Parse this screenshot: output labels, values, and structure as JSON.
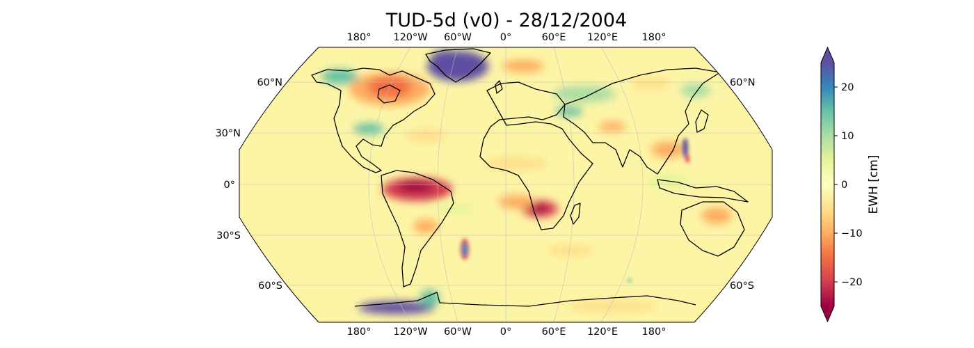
{
  "title": "TUD-5d (v0) - 28/12/2004",
  "lon_labels": [
    "180°",
    "120°W",
    "60°W",
    "0°",
    "60°E",
    "120°E",
    "180°"
  ],
  "lat_labels_left": [
    "60°N",
    "30°N",
    "0°",
    "30°S",
    "60°S"
  ],
  "lat_labels_right": [
    "60°N",
    "60°S"
  ],
  "colorbar": {
    "label": "EWH [cm]",
    "min": -25,
    "max": 25,
    "ticks": [
      {
        "value": 20,
        "label": "20"
      },
      {
        "value": 10,
        "label": "10"
      },
      {
        "value": 0,
        "label": "0"
      },
      {
        "value": -10,
        "label": "−10"
      },
      {
        "value": -20,
        "label": "−20"
      }
    ],
    "colormap": "Spectral",
    "colors": [
      "#9e0142",
      "#d53e4f",
      "#f46d43",
      "#fdae61",
      "#fee08b",
      "#ffffbf",
      "#e6f598",
      "#abdda4",
      "#66c2a5",
      "#3288bd",
      "#5e4fa2"
    ]
  },
  "map": {
    "projection": "Robinson",
    "background_color": "#fdf5a6",
    "features": [
      {
        "name": "Greenland",
        "value": 25
      },
      {
        "name": "Amazon basin",
        "value": -24
      },
      {
        "name": "Zambezi basin",
        "value": -20
      },
      {
        "name": "Hudson Bay",
        "value": -10
      },
      {
        "name": "Alaska",
        "value": 12
      },
      {
        "name": "West Antarctica",
        "value": 25
      },
      {
        "name": "South Atlantic anomaly",
        "value": 25
      },
      {
        "name": "Taiwan anomaly",
        "value": 25
      }
    ]
  }
}
